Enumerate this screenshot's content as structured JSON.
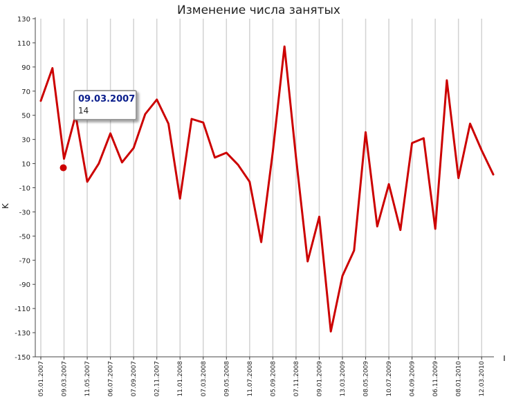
{
  "chart_data": {
    "type": "line",
    "title": "Изменение числа занятых",
    "xlabel": "",
    "ylabel": "K",
    "ylim": [
      -150,
      130
    ],
    "yticks": [
      130,
      110,
      90,
      70,
      50,
      30,
      10,
      -10,
      -30,
      -50,
      -70,
      -90,
      -110,
      -130,
      -150
    ],
    "grid": "vertical",
    "x_tick_labels": [
      "05.01.2007",
      "09.03.2007",
      "11.05.2007",
      "06.07.2007",
      "07.09.2007",
      "02.11.2007",
      "11.01.2008",
      "07.03.2008",
      "09.05.2008",
      "11.07.2008",
      "05.09.2008",
      "07.11.2008",
      "09.01.2009",
      "13.03.2009",
      "08.05.2009",
      "10.07.2009",
      "04.09.2009",
      "06.11.2009",
      "08.01.2010",
      "12.03.2010"
    ],
    "series": [
      {
        "color": "#cc0000",
        "values": [
          62,
          89,
          14,
          50,
          -5,
          10,
          35,
          11,
          23,
          51,
          63,
          43,
          -19,
          47,
          44,
          15,
          19,
          9,
          -5,
          -55,
          20,
          107,
          15,
          -71,
          -34,
          -129,
          -83,
          -62,
          36,
          -42,
          -7,
          -45,
          27,
          31,
          -44,
          79,
          -2,
          43,
          21,
          1
        ]
      }
    ],
    "highlight": {
      "index": 2
    }
  },
  "tooltip": {
    "date": "09.03.2007",
    "value": "14"
  }
}
